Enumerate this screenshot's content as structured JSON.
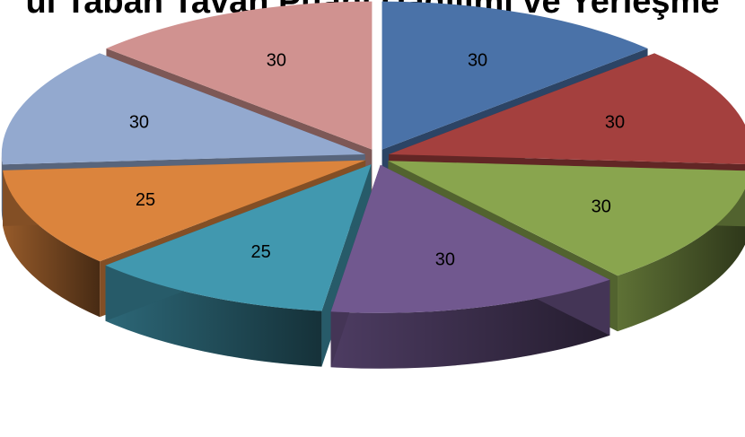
{
  "chart_data": {
    "type": "pie",
    "style": "3d-exploded",
    "title": "ul Taban Tavan Puanı Dağılımı ve Yerleşme",
    "values": [
      30,
      30,
      30,
      30,
      25,
      25,
      30,
      30
    ],
    "data_labels": [
      "30",
      "30",
      "30",
      "30",
      "25",
      "25",
      "30",
      "30"
    ],
    "colors": [
      "#4A72A8",
      "#A4403E",
      "#89A54E",
      "#71588F",
      "#4198AF",
      "#DB843D",
      "#93A9CF",
      "#D09290"
    ],
    "legend": false
  }
}
